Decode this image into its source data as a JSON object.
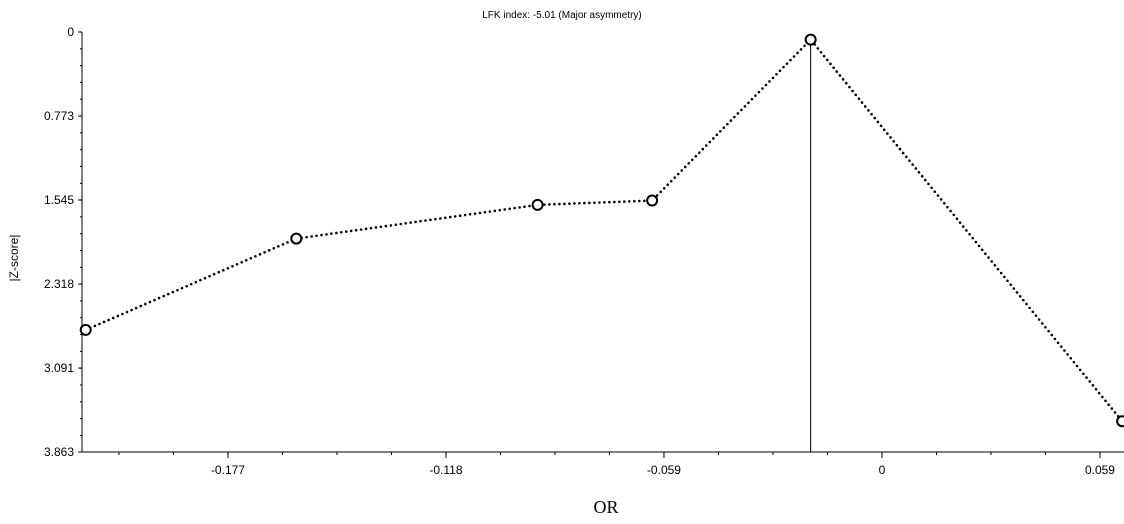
{
  "chart_data": {
    "type": "line",
    "title": "LFK index: -5.01 (Major asymmetry)",
    "xlabel": "OR",
    "ylabel": "|Z-score|",
    "x_ticks": [
      "-0.177",
      "-0.118",
      "-0.059",
      "0",
      "0.059"
    ],
    "y_ticks": [
      "0",
      "0.773",
      "1.545",
      "2.318",
      "3.091",
      "3.863"
    ],
    "xlim": [
      -0.2165,
      0.0655
    ],
    "ylim": [
      0,
      3.863
    ],
    "y_inverted": true,
    "grid": false,
    "series": [
      {
        "points": [
          {
            "x": -0.2155,
            "y": 2.74
          },
          {
            "x": -0.1585,
            "y": 1.9
          },
          {
            "x": -0.0932,
            "y": 1.59
          },
          {
            "x": -0.0622,
            "y": 1.55
          },
          {
            "x": -0.0193,
            "y": 0.07
          },
          {
            "x": 0.065,
            "y": 3.58
          }
        ],
        "line_style": "dotted",
        "marker": "open-circle",
        "color": "#000000"
      }
    ],
    "reference_line": {
      "x": -0.0193,
      "color": "#000000"
    }
  }
}
